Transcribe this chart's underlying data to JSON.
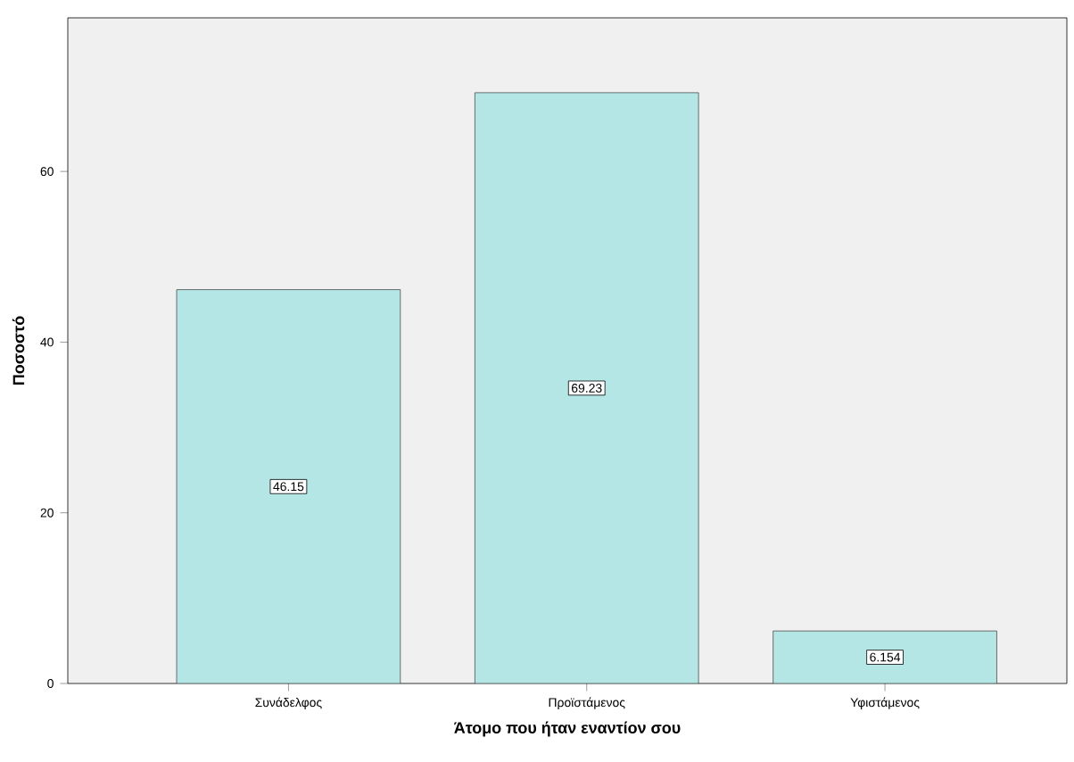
{
  "chart_data": {
    "type": "bar",
    "xlabel": "Άτομο που ήταν εναντίον σου",
    "ylabel": "Ποσοστό",
    "categories": [
      "Συνάδελφος",
      "Προϊστάμενος",
      "Υφιστάμενος"
    ],
    "values": [
      46.15,
      69.23,
      6.154
    ],
    "value_labels": [
      "46.15",
      "69.23",
      "6.154"
    ],
    "color": "#b4e6e6",
    "ylim": [
      0,
      78
    ],
    "yticks": [
      0,
      20,
      40,
      60
    ]
  }
}
